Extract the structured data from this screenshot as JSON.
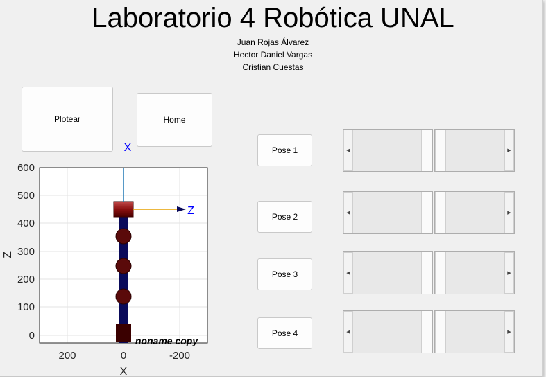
{
  "title": "Laboratorio 4 Robótica UNAL",
  "authors": [
    "Juan Rojas Álvarez",
    "Hector Daniel Vargas",
    "Cristian Cuestas"
  ],
  "buttons": {
    "plot": "Plotear",
    "home": "Home"
  },
  "poses": [
    {
      "label": "Pose 1"
    },
    {
      "label": "Pose 2"
    },
    {
      "label": "Pose 3"
    },
    {
      "label": "Pose 4"
    }
  ],
  "plot": {
    "xlabel": "X",
    "zlabel": "Z",
    "xticks": [
      "200",
      "0",
      "-200"
    ],
    "zticks": [
      "600",
      "500",
      "400",
      "300",
      "200",
      "100",
      "0"
    ],
    "frame_x_label": "X",
    "frame_z_label": "Z",
    "robot_name": "noname copy",
    "colors": {
      "link": "#0a0a5a",
      "joint": "#5a0a0a",
      "x_axis": "#1f77b4",
      "z_axis": "#e6a000",
      "frame_label": "#0000ff"
    }
  }
}
